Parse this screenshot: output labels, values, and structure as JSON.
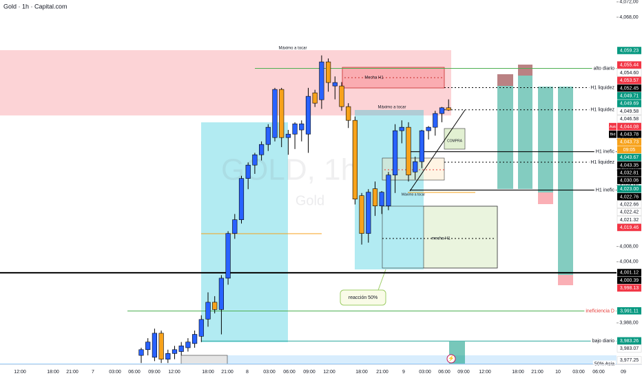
{
  "chart_data": {
    "type": "candlestick",
    "title": "Gold · 1h · Capital.com",
    "watermark": "GOLD, 1h",
    "watermark_sub": "Gold",
    "up_color": "#2962ff",
    "down_color": "#f7a21b",
    "ylim": [
      3977,
      4072.5
    ],
    "yticks": [
      {
        "value": 4072,
        "label": "4,072,00"
      },
      {
        "value": 4068,
        "label": "4,068,00"
      },
      {
        "value": 4036,
        "label": "4,036,00"
      },
      {
        "value": 4028,
        "label": "4,028,00"
      },
      {
        "value": 4024,
        "label": "4,024,00"
      },
      {
        "value": 4008,
        "label": "4,008,00"
      },
      {
        "value": 4004,
        "label": "4,004,00"
      },
      {
        "value": 3988,
        "label": "3,988,00"
      }
    ],
    "x_labels": [
      "12:00",
      "18:00",
      "21:00",
      "7",
      "03:00",
      "06:00",
      "09:00",
      "12:00",
      "18:00",
      "21:00",
      "8",
      "03:00",
      "06:00",
      "09:00",
      "12:00",
      "18:00",
      "21:00",
      "9",
      "03:00",
      "06:00",
      "09:00",
      "12:00",
      "18:00",
      "21:00",
      "10",
      "03:00",
      "06:00",
      "09"
    ],
    "open": [
      3979.5,
      3981,
      3979,
      3985.3,
      3978.5,
      3980,
      3980.5,
      3981.5,
      3982.6,
      3984.5,
      3989,
      3993.4,
      3991.5,
      3999.7,
      4011.4,
      4015,
      4025.8,
      4029.3,
      4032,
      4034.7,
      4036.5,
      4049.1,
      4036.5,
      4037.4,
      4038.5,
      4037.4,
      4048.2,
      4046.4,
      4056.3,
      4050,
      4050,
      4044.6,
      4041,
      4021.3,
      4011.4,
      4023.1,
      4018.6,
      4018.6,
      4026.7,
      4038.3,
      4039.2,
      4027.5,
      4030.2,
      4038.3,
      4039.2,
      4042.8,
      4044.3
    ],
    "high": [
      3981.5,
      3984,
      3986.5,
      3986,
      3981,
      3982,
      3983,
      3984,
      3986,
      3990,
      3996,
      3995,
      4000.5,
      4012,
      4016.5,
      4026.5,
      4030,
      4032.5,
      4035.5,
      4040,
      4049.5,
      4049.5,
      4038.5,
      4040.5,
      4041,
      4049.5,
      4049,
      4058,
      4057.2,
      4052.5,
      4051,
      4045.5,
      4042,
      4022,
      4023,
      4025,
      4022.5,
      4027.5,
      4040,
      4041,
      4040.5,
      4031.5,
      4038.5,
      4039.5,
      4043.5,
      4044.5,
      4046.5
    ],
    "low": [
      3977.5,
      3979.5,
      3978,
      3977.5,
      3977.5,
      3978.5,
      3979.5,
      3980.5,
      3981.5,
      3983,
      3987,
      3990.5,
      3985,
      3998,
      4010,
      4014,
      4023,
      4027,
      4030.5,
      4033,
      4035.5,
      4034,
      4032,
      4033.5,
      4035.5,
      4032.5,
      4044.5,
      4044,
      4048.5,
      4046.5,
      4043.5,
      4039,
      4019,
      4008.5,
      4009,
      4016,
      4016.5,
      4017.5,
      4022,
      4035,
      4025,
      4025.5,
      4028.5,
      4036,
      4037,
      4040.5,
      4043.5
    ],
    "close": [
      3981,
      3983,
      3985.3,
      3978.5,
      3980,
      3981,
      3982,
      3983,
      3985,
      3988.9,
      3993.4,
      3991.5,
      3999.7,
      4011.4,
      4015,
      4025.8,
      4029.3,
      4032,
      4034.7,
      4039.2,
      4049.1,
      4036.5,
      4037.4,
      4040.1,
      4040.1,
      4047.3,
      4045.5,
      4056.3,
      4050.9,
      4050.9,
      4044.6,
      4041,
      4020.4,
      4011.4,
      4022.2,
      4018.6,
      4022.2,
      4026.7,
      4038.3,
      4039.2,
      4026.7,
      4030.2,
      4038.3,
      4039.2,
      4042.8,
      4044.3,
      4043.7
    ],
    "price_tags": [
      {
        "value": 4059.23,
        "label": "4,059.23",
        "color": "#089981"
      },
      {
        "value": 4055.44,
        "label": "4,055.44",
        "color": "#f23645"
      },
      {
        "value": 4054.6,
        "label": "4,054.60",
        "color": "#ffffff"
      },
      {
        "value": 4053.57,
        "label": "4,053.57",
        "color": "#f23645"
      },
      {
        "value": 4052.45,
        "label": "4,052.45",
        "color": "#000000"
      },
      {
        "value": 4049.71,
        "label": "4,049.71",
        "color": "#089981"
      },
      {
        "value": 4049.69,
        "label": "4,049.69",
        "color": "#089981"
      },
      {
        "value": 4049.58,
        "label": "4,049.58",
        "color": "#ffffff"
      },
      {
        "value": 4046.58,
        "label": "4,046.58",
        "color": "#ffffff"
      },
      {
        "value": 4044.08,
        "label": "4,044.08",
        "color": "#f23645"
      },
      {
        "value": 4043.78,
        "label": "4,043.78",
        "color": "#000000"
      },
      {
        "value": 4043.73,
        "label": "4,043.73",
        "color": "#f7a21b"
      },
      {
        "value": 4043.67,
        "label": "4,043.67",
        "color": "#089981"
      },
      {
        "value": 4043.35,
        "label": "4,043.35",
        "color": "#000000"
      },
      {
        "value": 4032.81,
        "label": "4,032.81",
        "color": "#000000"
      },
      {
        "value": 4030.06,
        "label": "4,030.06",
        "color": "#000000"
      },
      {
        "value": 4023.0,
        "label": "4,023.00",
        "color": "#089981"
      },
      {
        "value": 4022.76,
        "label": "4,022.76",
        "color": "#000000"
      },
      {
        "value": 4022.66,
        "label": "4,022.66",
        "color": "#ffffff"
      },
      {
        "value": 4022.42,
        "label": "4,022.42",
        "color": "#ffffff"
      },
      {
        "value": 4021.32,
        "label": "4,021.32",
        "color": "#ffffff"
      },
      {
        "value": 4019.46,
        "label": "4,019.46",
        "color": "#f23645"
      },
      {
        "value": 4001.12,
        "label": "4,001.12",
        "color": "#000000"
      },
      {
        "value": 4000.39,
        "label": "4,000.39",
        "color": "#000000"
      },
      {
        "value": 3998.13,
        "label": "3,998.13",
        "color": "#f23645"
      },
      {
        "value": 3991.11,
        "label": "3,991.11",
        "color": "#089981"
      },
      {
        "value": 3983.26,
        "label": "3,983.26",
        "color": "#089981"
      },
      {
        "value": 3983.07,
        "label": "3,983.07",
        "color": "#ffffff"
      },
      {
        "value": 3977.25,
        "label": "3,977.25",
        "color": "#ffffff"
      }
    ],
    "ask": "Ask",
    "bid": "Bid",
    "countdown": "09:05",
    "levels": [
      {
        "value": 4054.6,
        "label": "alto diario",
        "color": "#4caf50",
        "dash": false
      },
      {
        "value": 4049.58,
        "label": "H1 liquidez",
        "color": "#000000",
        "dash": true
      },
      {
        "value": 4043.78,
        "label": "H1 liquidez",
        "color": "#000000",
        "dash": true
      },
      {
        "value": 4032.81,
        "label": "H1 inefic",
        "color": "#000000",
        "dash": false
      },
      {
        "value": 4030.06,
        "label": "H1 liquidez",
        "color": "#000000",
        "dash": true
      },
      {
        "value": 4022.76,
        "label": "H1 inefic",
        "color": "#000000",
        "dash": false
      },
      {
        "value": 3991.11,
        "label": "ineficiencia D",
        "color": "#4caf50",
        "dash": false
      },
      {
        "value": 3983.26,
        "label": "bajo diario",
        "color": "#26a69a",
        "dash": false
      },
      {
        "value": 3977.25,
        "label": "50% Asia",
        "color": "#90caf9",
        "dash": false
      }
    ],
    "annotations": [
      "Máximo a tocar",
      "Mecha H1",
      "Máximo a tocar",
      "Máximo a tocar",
      "mecha H1",
      "reacción 50%",
      "COMPRA"
    ]
  }
}
